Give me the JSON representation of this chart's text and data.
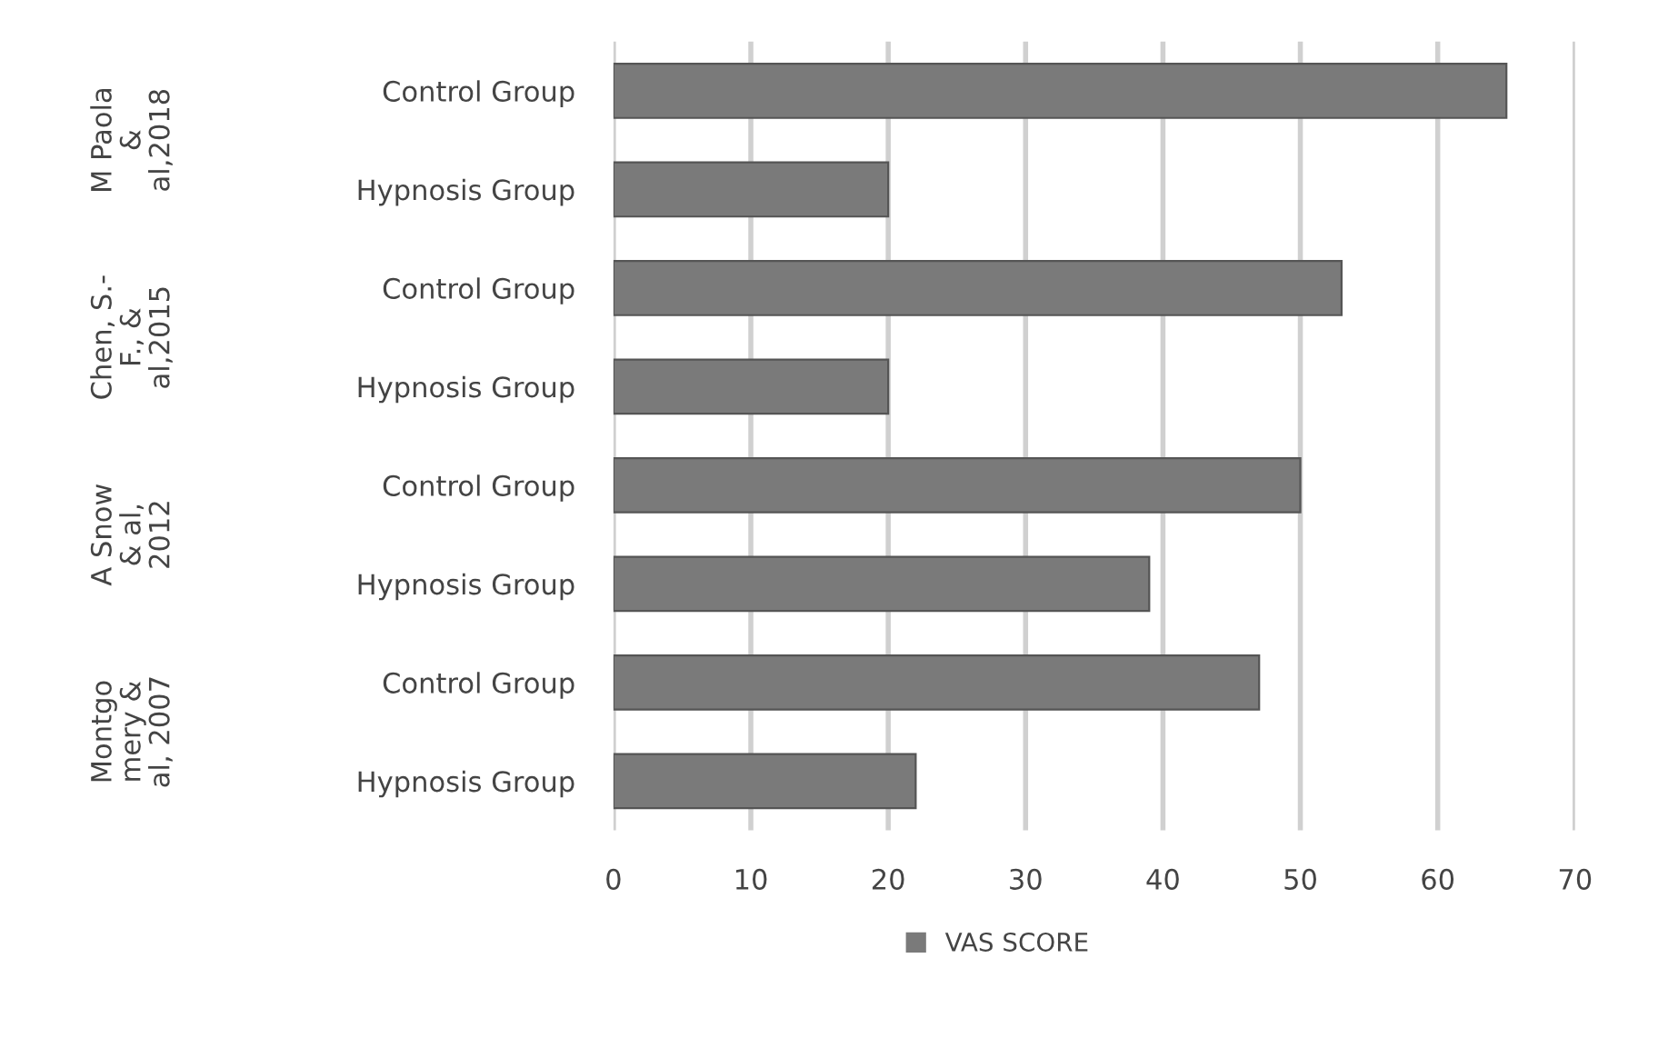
{
  "chart_data": {
    "type": "bar",
    "orientation": "horizontal",
    "categories": [
      "Control Group",
      "Hypnosis Group",
      "Control Group",
      "Hypnosis Group",
      "Control Group",
      "Hypnosis Group",
      "Control Group",
      "Hypnosis Group"
    ],
    "series": [
      {
        "name": "VAS SCORE",
        "color": "#7a7a7a",
        "values": [
          65,
          20,
          53,
          20,
          50,
          39,
          47,
          22
        ]
      }
    ],
    "annotations": [
      "M Paola\n&\nal,2018",
      "Chen, S.-\nF., &\nal,2015",
      "A Snow\n& al,\n2012",
      "Montgo\nmery &\nal, 2007"
    ],
    "xlim": [
      0,
      70
    ],
    "xticks": [
      0,
      10,
      20,
      30,
      40,
      50,
      60,
      70
    ],
    "grid": "x",
    "legend": "bottom"
  }
}
